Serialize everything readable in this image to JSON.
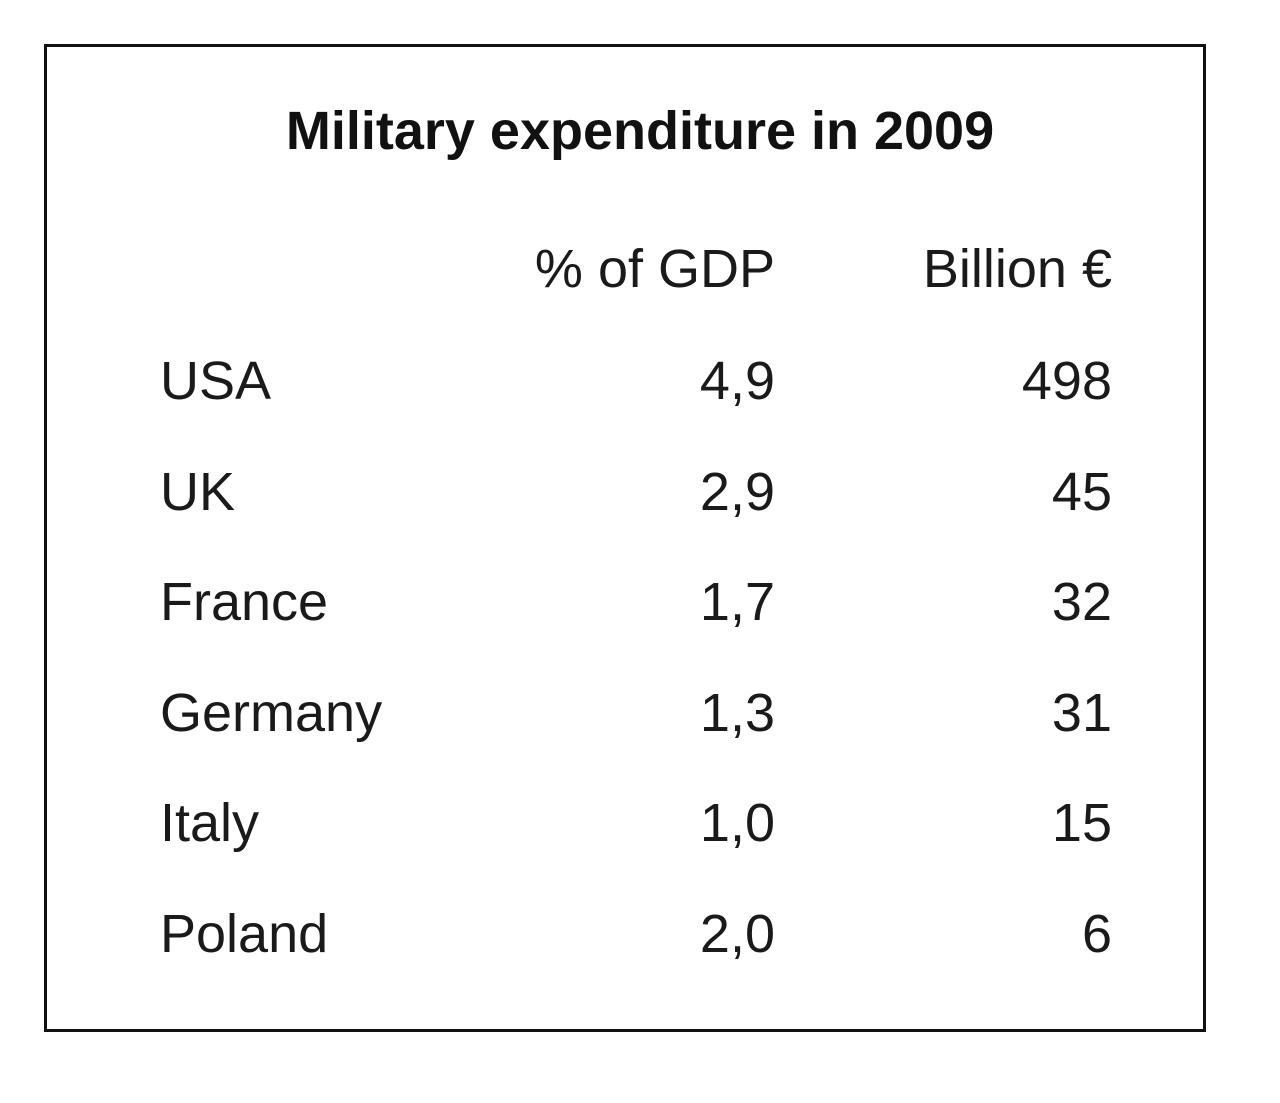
{
  "chart_data": {
    "type": "table",
    "title": "Military expenditure in 2009",
    "columns": [
      "",
      "% of GDP",
      "Billion €"
    ],
    "rows": [
      {
        "country": "USA",
        "gdp_pct": "4,9",
        "billion_eur": "498"
      },
      {
        "country": "UK",
        "gdp_pct": "2,9",
        "billion_eur": "45"
      },
      {
        "country": "France",
        "gdp_pct": "1,7",
        "billion_eur": "32"
      },
      {
        "country": "Germany",
        "gdp_pct": "1,3",
        "billion_eur": "31"
      },
      {
        "country": "Italy",
        "gdp_pct": "1,0",
        "billion_eur": "15"
      },
      {
        "country": "Poland",
        "gdp_pct": "2,0",
        "billion_eur": "6"
      }
    ]
  }
}
